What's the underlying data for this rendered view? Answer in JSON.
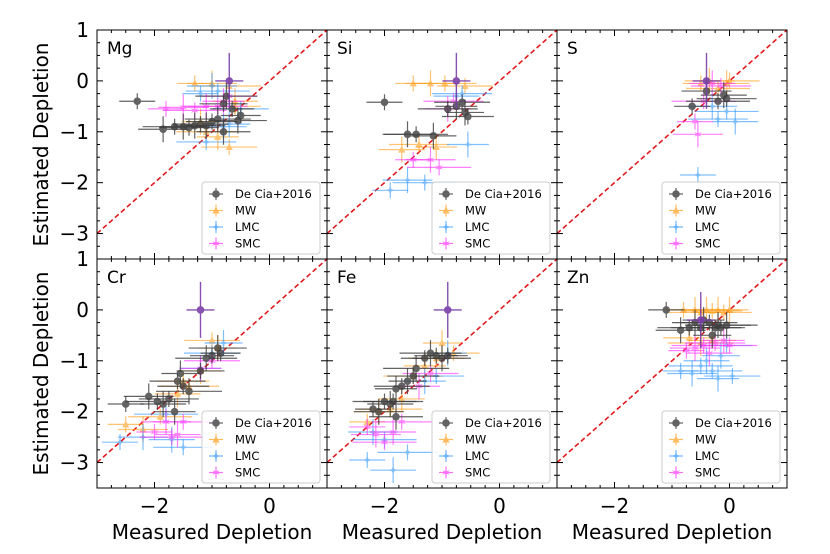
{
  "chart_data": {
    "type": "scatter",
    "xlabel": "Measured Depletion",
    "ylabel": "Estimated Depletion",
    "xlim": [
      -3,
      1
    ],
    "ylim": [
      -3.5,
      1
    ],
    "xticks": [
      -2,
      0
    ],
    "xtick_labels": [
      "−2",
      "0"
    ],
    "yticks": [
      1,
      0,
      -1,
      -2,
      -3
    ],
    "ytick_labels": [
      "1",
      "0",
      "−1",
      "−2",
      "−3"
    ],
    "reference_line": {
      "name": "one-to-one",
      "slope": 1,
      "intercept": 0,
      "style": "dashed",
      "color": "#e31a1c"
    },
    "legend": {
      "placement": "lower-right",
      "entries": [
        {
          "key": "decia",
          "label": "De Cia+2016",
          "color": "#3d3d3d",
          "marker": "circle"
        },
        {
          "key": "mw",
          "label": "MW",
          "color": "#ff9f1c",
          "marker": "triangle"
        },
        {
          "key": "lmc",
          "label": "LMC",
          "color": "#3399ff",
          "marker": "star"
        },
        {
          "key": "smc",
          "label": "SMC",
          "color": "#ff33ff",
          "marker": "star"
        }
      ]
    },
    "panels": [
      {
        "element": "Mg",
        "series": {
          "decia": [
            [
              -2.3,
              -0.4
            ],
            [
              -1.85,
              -0.95
            ],
            [
              -1.65,
              -0.9
            ],
            [
              -1.5,
              -0.9
            ],
            [
              -1.4,
              -0.92
            ],
            [
              -1.3,
              -0.88
            ],
            [
              -1.2,
              -0.85
            ],
            [
              -1.1,
              -0.88
            ],
            [
              -1.0,
              -0.8
            ],
            [
              -0.9,
              -0.75
            ],
            [
              -0.8,
              -0.45
            ],
            [
              -0.75,
              -0.3
            ],
            [
              -0.65,
              -0.55
            ],
            [
              -0.55,
              -0.78
            ],
            [
              -0.5,
              -0.68
            ],
            [
              -0.8,
              -1.0
            ]
          ],
          "mw": [
            [
              -1.3,
              -0.05
            ],
            [
              -1.0,
              -0.05
            ],
            [
              -0.7,
              -0.1
            ],
            [
              -0.6,
              -0.4
            ],
            [
              -1.1,
              -1.0
            ],
            [
              -0.9,
              -1.1
            ],
            [
              -0.7,
              -1.3
            ],
            [
              -1.2,
              -0.8
            ],
            [
              -0.6,
              -0.5
            ]
          ],
          "lmc": [
            [
              -1.2,
              -0.25
            ],
            [
              -1.0,
              -0.1
            ],
            [
              -0.9,
              -0.2
            ],
            [
              -0.8,
              -0.9
            ],
            [
              -1.1,
              -1.2
            ],
            [
              -0.7,
              -0.85
            ],
            [
              -0.5,
              -0.55
            ]
          ],
          "smc": [
            [
              -1.8,
              -0.55
            ],
            [
              -1.5,
              -0.52
            ],
            [
              -1.3,
              -0.58
            ],
            [
              -1.1,
              -0.5
            ],
            [
              -0.9,
              -0.5
            ],
            [
              -0.8,
              -0.4
            ],
            [
              -0.7,
              -0.3
            ]
          ],
          "special": [
            [
              -0.7,
              0.0
            ]
          ]
        }
      },
      {
        "element": "Si",
        "series": {
          "decia": [
            [
              -2.0,
              -0.42
            ],
            [
              -1.6,
              -1.05
            ],
            [
              -1.45,
              -1.05
            ],
            [
              -1.15,
              -1.08
            ],
            [
              -0.9,
              -0.55
            ],
            [
              -0.75,
              -0.5
            ],
            [
              -0.65,
              -0.42
            ],
            [
              -0.6,
              -0.62
            ],
            [
              -0.55,
              -0.7
            ]
          ],
          "mw": [
            [
              -1.5,
              -0.05
            ],
            [
              -1.2,
              -0.05
            ],
            [
              -0.95,
              -0.05
            ],
            [
              -1.7,
              -1.35
            ],
            [
              -1.4,
              -1.25
            ],
            [
              -1.1,
              -1.3
            ],
            [
              -0.6,
              -0.1
            ]
          ],
          "lmc": [
            [
              -1.9,
              -2.15
            ],
            [
              -1.6,
              -1.95
            ],
            [
              -1.3,
              -2.0
            ],
            [
              -0.75,
              -0.3
            ],
            [
              -0.65,
              -0.25
            ],
            [
              -0.55,
              -1.25
            ]
          ],
          "smc": [
            [
              -1.5,
              -1.55
            ],
            [
              -1.2,
              -1.55
            ],
            [
              -1.05,
              -1.7
            ],
            [
              -0.9,
              -0.55
            ],
            [
              -0.8,
              -0.4
            ]
          ],
          "special": [
            [
              -0.75,
              0.0
            ]
          ]
        }
      },
      {
        "element": "S",
        "series": {
          "decia": [
            [
              -0.65,
              -0.5
            ],
            [
              -0.4,
              -0.2
            ],
            [
              -0.2,
              -0.4
            ],
            [
              -0.1,
              -0.28
            ],
            [
              -0.05,
              -0.35
            ]
          ],
          "mw": [
            [
              -0.5,
              -0.05
            ],
            [
              -0.35,
              0.0
            ],
            [
              -0.2,
              -0.15
            ],
            [
              -0.05,
              -0.05
            ],
            [
              0.0,
              0.0
            ]
          ],
          "lmc": [
            [
              -0.55,
              -1.85
            ],
            [
              -0.3,
              -0.5
            ],
            [
              -0.05,
              -0.6
            ],
            [
              0.1,
              -0.8
            ],
            [
              -0.2,
              -0.75
            ]
          ],
          "smc": [
            [
              -0.6,
              -0.8
            ],
            [
              -0.55,
              -1.05
            ],
            [
              -0.45,
              -0.4
            ],
            [
              -0.3,
              -0.05
            ],
            [
              -0.15,
              -0.1
            ]
          ],
          "special": [
            [
              -0.4,
              0.0
            ]
          ]
        }
      },
      {
        "element": "Cr",
        "series": {
          "decia": [
            [
              -2.5,
              -1.85
            ],
            [
              -2.1,
              -1.7
            ],
            [
              -1.95,
              -1.8
            ],
            [
              -1.85,
              -1.85
            ],
            [
              -1.75,
              -1.75
            ],
            [
              -1.65,
              -2.0
            ],
            [
              -1.6,
              -1.4
            ],
            [
              -1.55,
              -1.25
            ],
            [
              -1.5,
              -1.5
            ],
            [
              -1.4,
              -1.6
            ],
            [
              -1.2,
              -1.2
            ],
            [
              -1.1,
              -0.95
            ],
            [
              -1.0,
              -0.9
            ],
            [
              -0.9,
              -0.75
            ],
            [
              -0.85,
              -0.85
            ]
          ],
          "mw": [
            [
              -2.5,
              -2.25
            ],
            [
              -2.2,
              -2.35
            ],
            [
              -1.9,
              -2.1
            ],
            [
              -1.6,
              -1.65
            ],
            [
              -1.4,
              -1.5
            ],
            [
              -1.2,
              -1.2
            ],
            [
              -1.0,
              -0.6
            ],
            [
              -0.9,
              -0.75
            ],
            [
              -1.5,
              -1.4
            ]
          ],
          "lmc": [
            [
              -2.6,
              -2.6
            ],
            [
              -2.2,
              -2.5
            ],
            [
              -1.8,
              -2.05
            ],
            [
              -1.7,
              -2.55
            ],
            [
              -1.5,
              -2.7
            ],
            [
              -1.2,
              -1.15
            ],
            [
              -1.0,
              -0.85
            ],
            [
              -0.8,
              -0.65
            ]
          ],
          "smc": [
            [
              -2.0,
              -2.4
            ],
            [
              -1.8,
              -2.2
            ],
            [
              -1.7,
              -2.5
            ],
            [
              -1.6,
              -2.45
            ],
            [
              -1.5,
              -2.2
            ],
            [
              -1.2,
              -1.15
            ],
            [
              -1.0,
              -1.0
            ]
          ],
          "special": [
            [
              -1.2,
              0.0
            ]
          ]
        }
      },
      {
        "element": "Fe",
        "series": {
          "decia": [
            [
              -2.2,
              -1.95
            ],
            [
              -2.1,
              -2.0
            ],
            [
              -2.0,
              -1.8
            ],
            [
              -1.9,
              -1.85
            ],
            [
              -1.85,
              -1.8
            ],
            [
              -1.8,
              -1.55
            ],
            [
              -1.7,
              -1.5
            ],
            [
              -1.6,
              -1.4
            ],
            [
              -1.5,
              -1.3
            ],
            [
              -1.45,
              -1.15
            ],
            [
              -1.3,
              -0.95
            ],
            [
              -1.2,
              -0.85
            ],
            [
              -1.1,
              -0.9
            ],
            [
              -1.0,
              -0.95
            ],
            [
              -0.9,
              -0.9
            ],
            [
              -1.8,
              -2.1
            ]
          ],
          "mw": [
            [
              -2.3,
              -2.2
            ],
            [
              -2.1,
              -2.0
            ],
            [
              -1.9,
              -1.95
            ],
            [
              -1.7,
              -1.75
            ],
            [
              -1.5,
              -1.3
            ],
            [
              -1.3,
              -1.1
            ],
            [
              -1.1,
              -0.95
            ],
            [
              -1.0,
              -0.65
            ],
            [
              -0.8,
              -0.85
            ]
          ],
          "lmc": [
            [
              -2.3,
              -2.95
            ],
            [
              -2.2,
              -2.4
            ],
            [
              -2.0,
              -2.55
            ],
            [
              -1.85,
              -3.15
            ],
            [
              -1.6,
              -2.8
            ],
            [
              -1.3,
              -1.4
            ],
            [
              -1.1,
              -1.3
            ],
            [
              -0.9,
              -0.85
            ]
          ],
          "smc": [
            [
              -2.3,
              -2.3
            ],
            [
              -2.15,
              -2.45
            ],
            [
              -2.0,
              -2.6
            ],
            [
              -1.85,
              -2.4
            ],
            [
              -1.7,
              -2.2
            ],
            [
              -1.4,
              -1.5
            ],
            [
              -1.2,
              -1.25
            ]
          ],
          "special": [
            [
              -0.9,
              0.0
            ]
          ]
        }
      },
      {
        "element": "Zn",
        "series": {
          "decia": [
            [
              -1.1,
              0.0
            ],
            [
              -0.85,
              -0.4
            ],
            [
              -0.7,
              -0.35
            ],
            [
              -0.6,
              -0.25
            ],
            [
              -0.5,
              -0.35
            ],
            [
              -0.45,
              -0.2
            ],
            [
              -0.35,
              -0.25
            ],
            [
              -0.3,
              -0.5
            ],
            [
              -0.25,
              -0.35
            ],
            [
              -0.2,
              -0.3
            ],
            [
              -0.15,
              -0.35
            ],
            [
              -0.05,
              -0.3
            ]
          ],
          "mw": [
            [
              -0.8,
              0.0
            ],
            [
              -0.6,
              0.0
            ],
            [
              -0.5,
              -0.05
            ],
            [
              -0.4,
              0.0
            ],
            [
              -0.3,
              -0.02
            ],
            [
              -0.2,
              0.0
            ],
            [
              -0.1,
              -0.05
            ],
            [
              0.0,
              0.0
            ],
            [
              -0.7,
              -0.55
            ],
            [
              -0.5,
              -0.65
            ],
            [
              -0.3,
              -0.6
            ]
          ],
          "lmc": [
            [
              -0.85,
              -1.2
            ],
            [
              -0.65,
              -1.25
            ],
            [
              -0.5,
              -1.1
            ],
            [
              -0.4,
              -1.0
            ],
            [
              -0.3,
              -1.2
            ],
            [
              -0.2,
              -1.35
            ],
            [
              0.05,
              -1.3
            ],
            [
              -0.15,
              -0.9
            ],
            [
              -0.05,
              -0.7
            ]
          ],
          "smc": [
            [
              -0.75,
              -0.8
            ],
            [
              -0.6,
              -0.75
            ],
            [
              -0.45,
              -0.7
            ],
            [
              -0.35,
              -0.85
            ],
            [
              -0.25,
              -0.65
            ],
            [
              -0.1,
              -0.6
            ],
            [
              0.0,
              -0.7
            ]
          ],
          "special": [
            [
              -0.5,
              -0.2
            ]
          ]
        }
      }
    ]
  }
}
